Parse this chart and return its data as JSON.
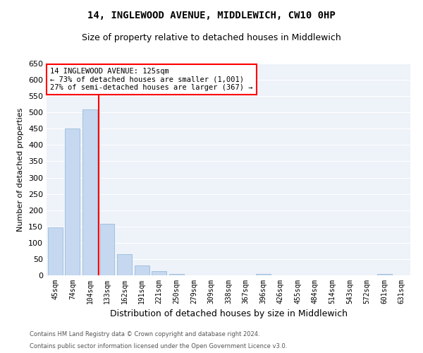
{
  "title": "14, INGLEWOOD AVENUE, MIDDLEWICH, CW10 0HP",
  "subtitle": "Size of property relative to detached houses in Middlewich",
  "xlabel": "Distribution of detached houses by size in Middlewich",
  "ylabel": "Number of detached properties",
  "footer_line1": "Contains HM Land Registry data © Crown copyright and database right 2024.",
  "footer_line2": "Contains public sector information licensed under the Open Government Licence v3.0.",
  "categories": [
    "45sqm",
    "74sqm",
    "104sqm",
    "133sqm",
    "162sqm",
    "191sqm",
    "221sqm",
    "250sqm",
    "279sqm",
    "309sqm",
    "338sqm",
    "367sqm",
    "396sqm",
    "426sqm",
    "455sqm",
    "484sqm",
    "514sqm",
    "543sqm",
    "572sqm",
    "601sqm",
    "631sqm"
  ],
  "values": [
    148,
    450,
    510,
    158,
    65,
    30,
    12,
    5,
    0,
    0,
    0,
    0,
    5,
    0,
    0,
    0,
    0,
    0,
    0,
    5,
    0
  ],
  "bar_color": "#c5d8f0",
  "bar_edge_color": "#8ab4d8",
  "vline_color": "red",
  "vline_x": 2.5,
  "annotation_text": "14 INGLEWOOD AVENUE: 125sqm\n← 73% of detached houses are smaller (1,001)\n27% of semi-detached houses are larger (367) →",
  "ylim": [
    0,
    650
  ],
  "yticks": [
    0,
    50,
    100,
    150,
    200,
    250,
    300,
    350,
    400,
    450,
    500,
    550,
    600,
    650
  ],
  "bg_color": "#eef2f9",
  "grid_color": "white",
  "title_fontsize": 10,
  "subtitle_fontsize": 9,
  "ylabel_fontsize": 8,
  "xlabel_fontsize": 9,
  "tick_fontsize": 7,
  "bar_width": 0.85
}
